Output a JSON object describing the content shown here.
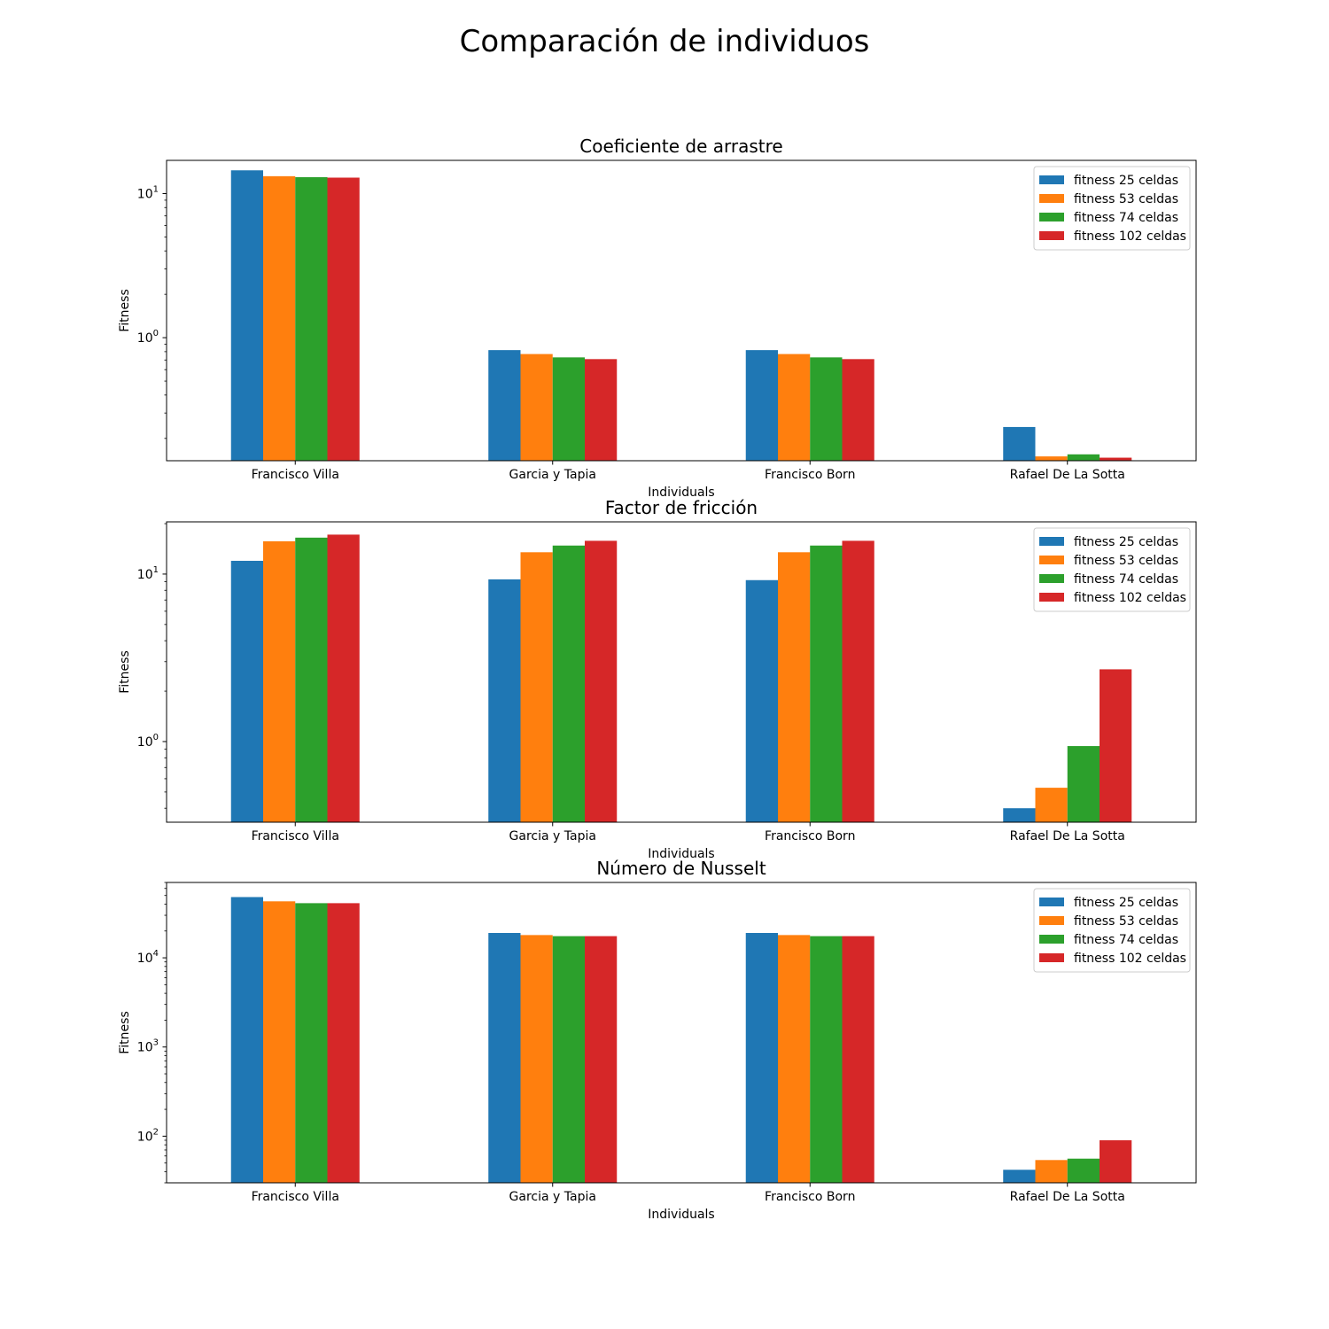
{
  "figure_title": "Comparación de individuos",
  "chart_data": [
    {
      "type": "bar",
      "title": "Coeficiente de arrastre",
      "xlabel": "Individuals",
      "ylabel": "Fitness",
      "yscale": "log",
      "ylim": [
        0.14,
        17
      ],
      "yticks": [
        {
          "value": 1,
          "base": "10",
          "exp": "0"
        },
        {
          "value": 10,
          "base": "10",
          "exp": "1"
        }
      ],
      "legend_position": "top-right",
      "categories": [
        "Francisco Villa",
        "Garcia y Tapia",
        "Francisco Born",
        "Rafael De La Sotta"
      ],
      "series": [
        {
          "name": "fitness 25 celdas",
          "color": "#1f77b4",
          "values": [
            14.5,
            0.82,
            0.82,
            0.24
          ]
        },
        {
          "name": "fitness 53 celdas",
          "color": "#ff7f0e",
          "values": [
            13.2,
            0.77,
            0.77,
            0.15
          ]
        },
        {
          "name": "fitness 74 celdas",
          "color": "#2ca02c",
          "values": [
            13.0,
            0.73,
            0.73,
            0.155
          ]
        },
        {
          "name": "fitness 102 celdas",
          "color": "#d62728",
          "values": [
            12.9,
            0.71,
            0.71,
            0.147
          ]
        }
      ]
    },
    {
      "type": "bar",
      "title": "Factor de fricción",
      "xlabel": "Individuals",
      "ylabel": "Fitness",
      "yscale": "log",
      "ylim": [
        0.33,
        20.5
      ],
      "yticks": [
        {
          "value": 1,
          "base": "10",
          "exp": "0"
        },
        {
          "value": 10,
          "base": "10",
          "exp": "1"
        }
      ],
      "legend_position": "top-right",
      "categories": [
        "Francisco Villa",
        "Garcia y Tapia",
        "Francisco Born",
        "Rafael De La Sotta"
      ],
      "series": [
        {
          "name": "fitness 25 celdas",
          "color": "#1f77b4",
          "values": [
            12.0,
            9.3,
            9.2,
            0.4
          ]
        },
        {
          "name": "fitness 53 celdas",
          "color": "#ff7f0e",
          "values": [
            15.7,
            13.5,
            13.5,
            0.53
          ]
        },
        {
          "name": "fitness 74 celdas",
          "color": "#2ca02c",
          "values": [
            16.5,
            14.8,
            14.8,
            0.94
          ]
        },
        {
          "name": "fitness 102 celdas",
          "color": "#d62728",
          "values": [
            17.2,
            15.8,
            15.8,
            2.7
          ]
        }
      ]
    },
    {
      "type": "bar",
      "title": "Número de Nusselt",
      "xlabel": "Individuals",
      "ylabel": "Fitness",
      "yscale": "log",
      "ylim": [
        30,
        70000
      ],
      "yticks": [
        {
          "value": 100,
          "base": "10",
          "exp": "2"
        },
        {
          "value": 1000,
          "base": "10",
          "exp": "3"
        },
        {
          "value": 10000,
          "base": "10",
          "exp": "4"
        }
      ],
      "legend_position": "top-right",
      "categories": [
        "Francisco Villa",
        "Garcia y Tapia",
        "Francisco Born",
        "Rafael De La Sotta"
      ],
      "series": [
        {
          "name": "fitness 25 celdas",
          "color": "#1f77b4",
          "values": [
            48000,
            19000,
            19000,
            42
          ]
        },
        {
          "name": "fitness 53 celdas",
          "color": "#ff7f0e",
          "values": [
            43000,
            18000,
            18000,
            54
          ]
        },
        {
          "name": "fitness 74 celdas",
          "color": "#2ca02c",
          "values": [
            41000,
            17500,
            17500,
            56
          ]
        },
        {
          "name": "fitness 102 celdas",
          "color": "#d62728",
          "values": [
            41000,
            17500,
            17500,
            90
          ]
        }
      ]
    }
  ]
}
